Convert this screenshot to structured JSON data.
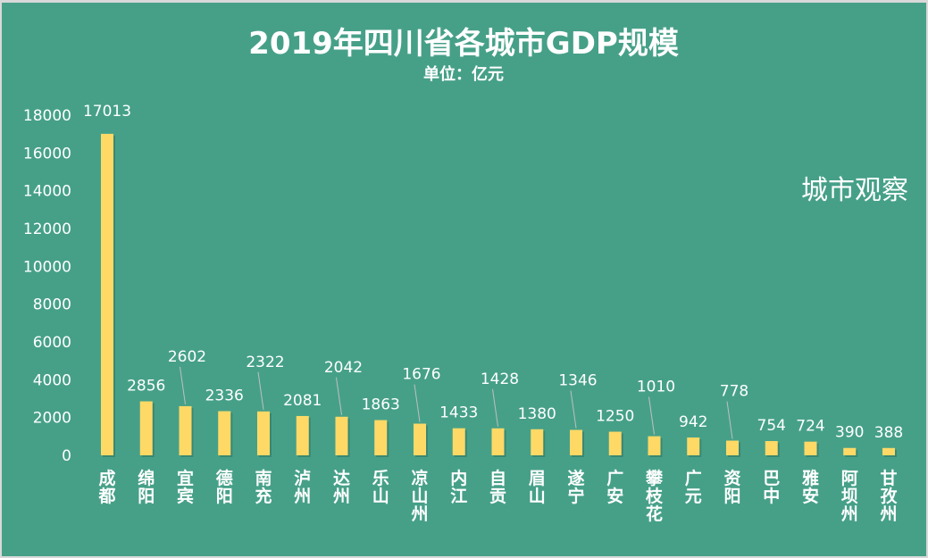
{
  "chart_data": {
    "type": "bar",
    "title": "2019年四川省各城市GDP规模",
    "subtitle": "单位：亿元",
    "categories": [
      "成都",
      "绵阳",
      "宜宾",
      "德阳",
      "南充",
      "泸州",
      "达州",
      "乐山",
      "凉山州",
      "内江",
      "自贡",
      "眉山",
      "遂宁",
      "广安",
      "攀枝花",
      "广元",
      "资阳",
      "巴中",
      "雅安",
      "阿坝州",
      "甘孜州"
    ],
    "values": [
      17013,
      2856,
      2602,
      2336,
      2322,
      2081,
      2042,
      1863,
      1676,
      1433,
      1428,
      1380,
      1346,
      1250,
      1010,
      942,
      778,
      754,
      724,
      390,
      388
    ],
    "ylim": [
      0,
      18000
    ],
    "yticks": [
      0,
      2000,
      4000,
      6000,
      8000,
      10000,
      12000,
      14000,
      16000,
      18000
    ],
    "grid": false,
    "bar_color": "#ffd966",
    "background_color": "#46a088",
    "data_labels": true
  },
  "watermark": "城市观察"
}
